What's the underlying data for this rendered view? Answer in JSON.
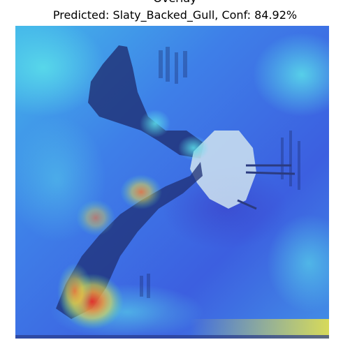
{
  "figure": {
    "title": "Overlay",
    "prediction_label": "Predicted",
    "predicted_class": "Slaty_Backed_Gull",
    "confidence_label": "Conf",
    "confidence_percent": "84.92%",
    "subtitle": "Predicted: Slaty_Backed_Gull, Conf: 84.92%"
  },
  "image": {
    "subject": "gull in flight with wings spread",
    "overlay_type": "jet-colormap heatmap",
    "colors": {
      "background_blue": "#3f6fe6",
      "cyan": "#49d3e8",
      "hot_red": "#e8322a",
      "hot_yellow": "#f0d64a",
      "bird_dark": "#1f2f73",
      "bird_light": "#cfe3f0"
    }
  }
}
